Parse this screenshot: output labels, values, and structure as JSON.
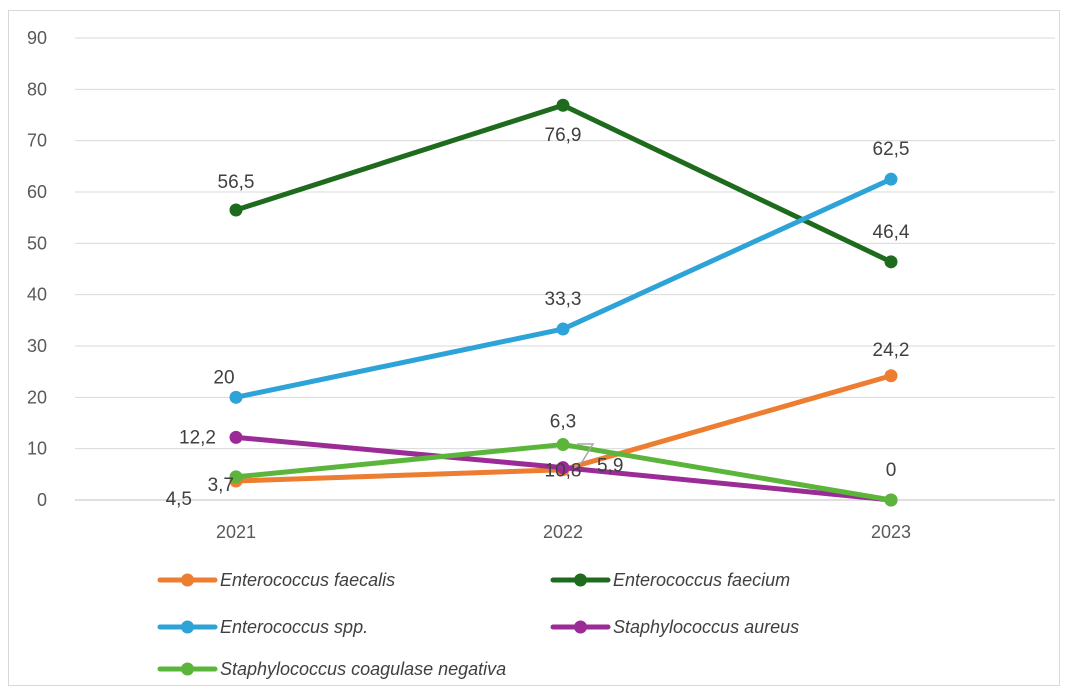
{
  "chart_data": {
    "type": "line",
    "title": "",
    "xlabel": "",
    "ylabel": "",
    "x": [
      "2021",
      "2022",
      "2023"
    ],
    "ylim": [
      0,
      90
    ],
    "yticks": [
      0,
      10,
      20,
      30,
      40,
      50,
      60,
      70,
      80,
      90
    ],
    "grid": true,
    "legend_position": "bottom",
    "series": [
      {
        "name": "Enterococcus faecalis",
        "color": "#ED7D31",
        "values": [
          3.7,
          5.9,
          24.2
        ],
        "labels": [
          "3,7",
          "5,9",
          "24,2"
        ]
      },
      {
        "name": "Enterococcus faecium",
        "color": "#1E6B1E",
        "values": [
          56.5,
          76.9,
          46.4
        ],
        "labels": [
          "56,5",
          "76,9",
          "46,4"
        ]
      },
      {
        "name": "Enterococcus spp.",
        "color": "#2EA3D8",
        "values": [
          20,
          33.3,
          62.5
        ],
        "labels": [
          "20",
          "33,3",
          "62,5"
        ]
      },
      {
        "name": "Staphylococcus aureus",
        "color": "#9B2B96",
        "values": [
          12.2,
          6.3,
          0
        ],
        "labels": [
          "12,2",
          "6,3",
          "0"
        ]
      },
      {
        "name": "Staphylococcus coagulase negativa",
        "color": "#5BB53B",
        "values": [
          4.5,
          10.8,
          0
        ],
        "labels": [
          "4,5",
          "10,8",
          ""
        ]
      }
    ]
  }
}
